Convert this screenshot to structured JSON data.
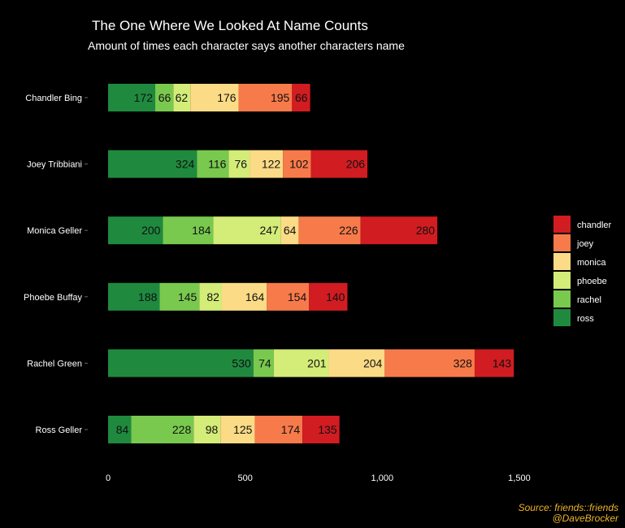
{
  "chart_data": {
    "type": "bar",
    "orientation": "horizontal",
    "stacked": true,
    "title": "The One Where We Looked At Name Counts",
    "subtitle": "Amount of times each character says another characters name",
    "caption": [
      "Source: friends::friends",
      "@DaveBrocker"
    ],
    "categories": [
      "Chandler Bing",
      "Joey Tribbiani",
      "Monica Geller",
      "Phoebe Buffay",
      "Rachel Green",
      "Ross Geller"
    ],
    "series": [
      {
        "name": "ross",
        "color": "#1f8a3e",
        "values": [
          172,
          324,
          200,
          188,
          530,
          84
        ]
      },
      {
        "name": "rachel",
        "color": "#79c94f",
        "values": [
          66,
          116,
          184,
          145,
          74,
          228
        ]
      },
      {
        "name": "phoebe",
        "color": "#d4ec78",
        "values": [
          62,
          76,
          247,
          82,
          201,
          98
        ]
      },
      {
        "name": "monica",
        "color": "#fcdb86",
        "values": [
          176,
          122,
          64,
          164,
          204,
          125
        ]
      },
      {
        "name": "joey",
        "color": "#f77a4a",
        "values": [
          195,
          102,
          226,
          154,
          328,
          174
        ]
      },
      {
        "name": "chandler",
        "color": "#d11c21",
        "values": [
          66,
          206,
          280,
          140,
          143,
          135
        ]
      }
    ],
    "legend_order": [
      "chandler",
      "joey",
      "monica",
      "phoebe",
      "rachel",
      "ross"
    ],
    "x_ticks": [
      "0",
      "500",
      "1,000",
      "1,500"
    ],
    "x_tick_values": [
      0,
      500,
      1000,
      1500
    ],
    "xlim": [
      0,
      1500
    ],
    "legend_position": "right",
    "grid": false
  }
}
